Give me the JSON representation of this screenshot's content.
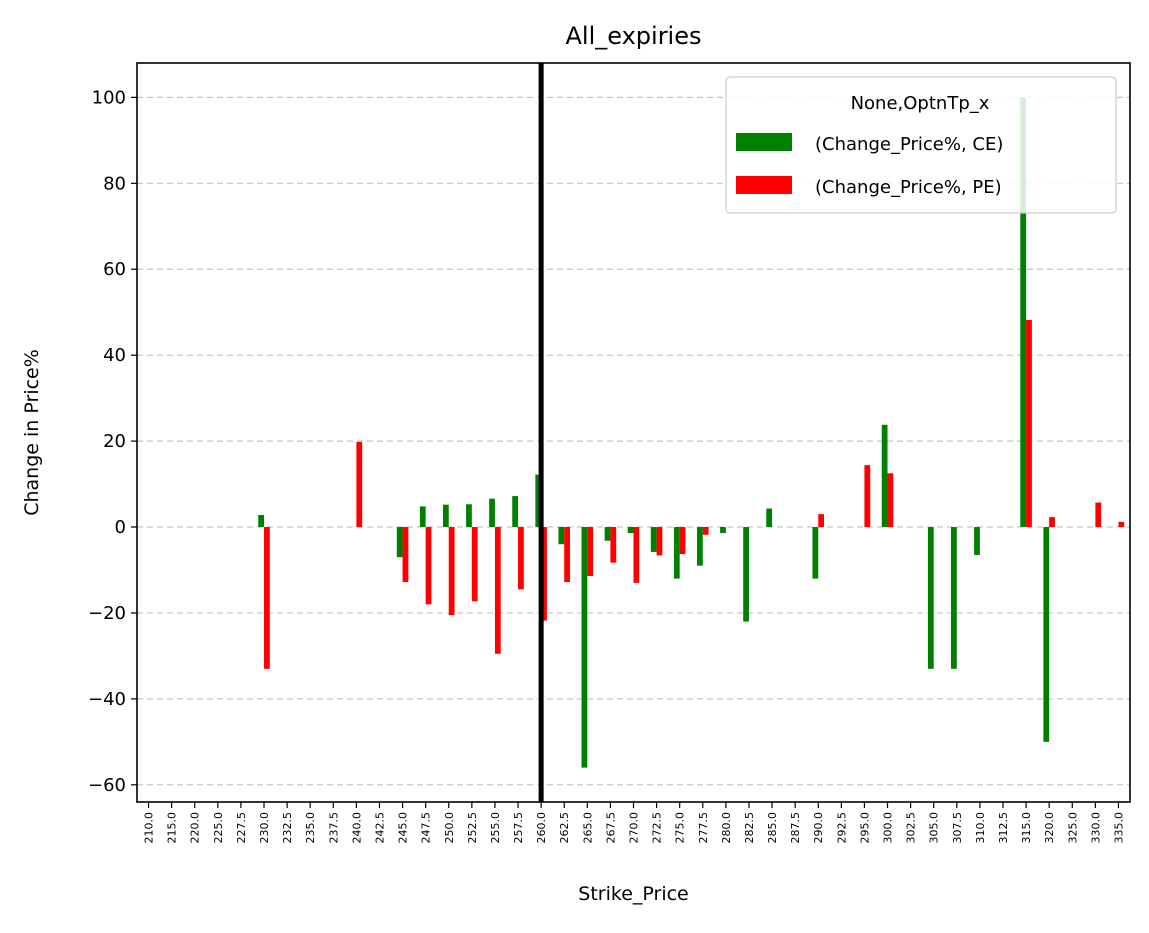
{
  "chart_data": {
    "type": "bar",
    "title": "All_expiries",
    "xlabel": "Strike_Price",
    "ylabel": "Change in Price%",
    "ylim": [
      -64,
      108
    ],
    "yticks": [
      -60,
      -40,
      -20,
      0,
      20,
      40,
      60,
      80,
      100
    ],
    "ytick_labels": [
      "−60",
      "−40",
      "−20",
      "0",
      "20",
      "40",
      "60",
      "80",
      "100"
    ],
    "grid": "horizontal dashed",
    "categories": [
      "210.0",
      "215.0",
      "220.0",
      "225.0",
      "227.5",
      "230.0",
      "232.5",
      "235.0",
      "237.5",
      "240.0",
      "242.5",
      "245.0",
      "247.5",
      "250.0",
      "252.5",
      "255.0",
      "257.5",
      "260.0",
      "262.5",
      "265.0",
      "267.5",
      "270.0",
      "272.5",
      "275.0",
      "277.5",
      "280.0",
      "282.5",
      "285.0",
      "287.5",
      "290.0",
      "292.5",
      "295.0",
      "300.0",
      "302.5",
      "305.0",
      "307.5",
      "310.0",
      "312.5",
      "315.0",
      "320.0",
      "325.0",
      "330.0",
      "335.0"
    ],
    "series": [
      {
        "name": "(Change_Price%, CE)",
        "color": "#008000",
        "values": [
          0,
          0,
          0,
          0,
          0,
          2.8,
          0,
          0,
          0,
          0,
          0,
          -7,
          4.8,
          5.2,
          5.3,
          6.6,
          7.2,
          12.2,
          -4,
          -56,
          -3.2,
          -1.4,
          -5.8,
          -12,
          -9,
          -1.4,
          -22,
          4.3,
          0,
          -12,
          0,
          0,
          23.8,
          0,
          -33,
          -33,
          -6.5,
          0,
          100,
          -50,
          0,
          0,
          0
        ]
      },
      {
        "name": "(Change_Price%, PE)",
        "color": "#ff0000",
        "values": [
          0,
          0,
          0,
          0,
          0,
          -33,
          0,
          0,
          0,
          19.8,
          0,
          -12.8,
          -18,
          -20.5,
          -17.3,
          -29.5,
          -14.5,
          -21.8,
          -12.8,
          -11.4,
          -8.3,
          -13,
          -6.6,
          -6.3,
          -1.8,
          0,
          0,
          0,
          0,
          3,
          0,
          14.4,
          12.5,
          0,
          0,
          0,
          0,
          0,
          48.2,
          2.3,
          0,
          5.7,
          1.2
        ]
      }
    ],
    "vline": {
      "category": "260.0",
      "color": "#000000"
    },
    "legend": {
      "title": "None,OptnTp_x",
      "placement": "top-right"
    }
  }
}
